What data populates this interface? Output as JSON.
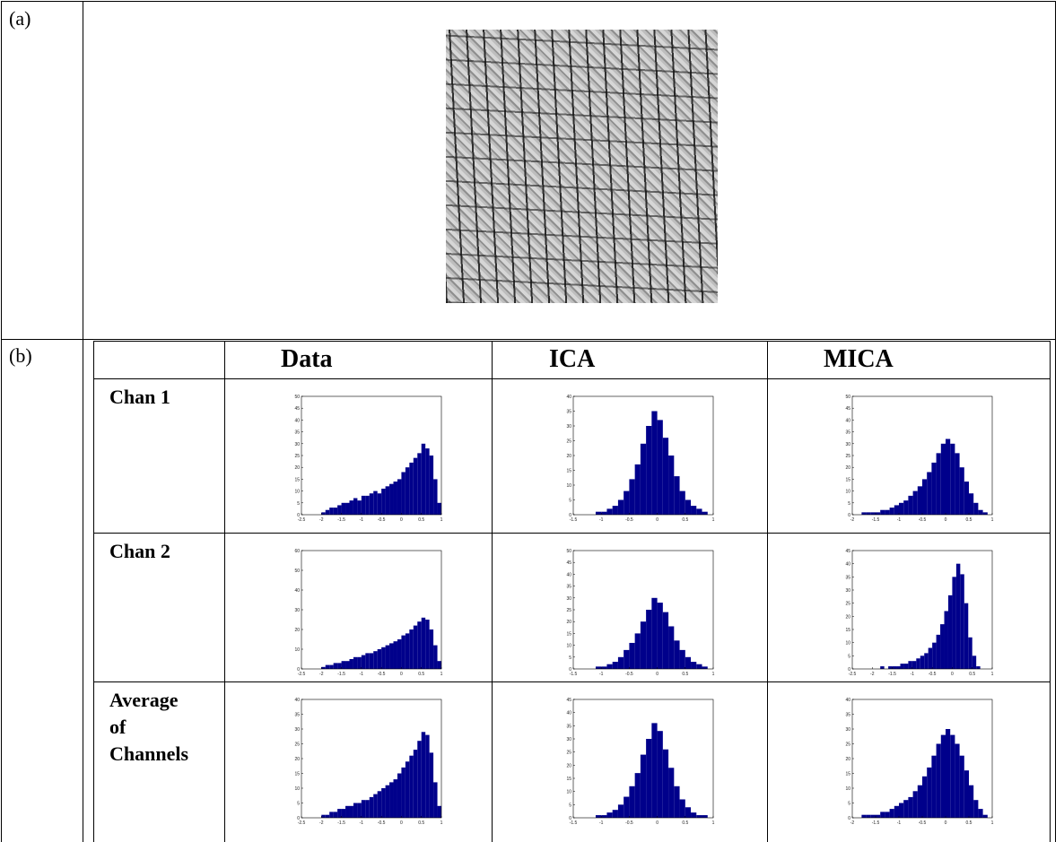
{
  "panel_labels": [
    "(a)",
    "(b)"
  ],
  "table": {
    "columns": [
      "Data",
      "ICA",
      "MICA"
    ],
    "rows": [
      "Chan 1",
      "Chan 2",
      "Average of Channels"
    ]
  },
  "chart_data": [
    {
      "type": "histogram",
      "color": "#00008b",
      "xlim": [
        -2.5,
        1
      ],
      "xticks": [
        -2.5,
        -2,
        -1.5,
        -1,
        -0.5,
        0,
        0.5,
        1
      ],
      "ylim": [
        0,
        50
      ],
      "yticks": [
        0,
        5,
        10,
        15,
        20,
        25,
        30,
        35,
        40,
        45,
        50
      ],
      "bins": [
        -2,
        -1.9,
        -1.8,
        -1.7,
        -1.6,
        -1.5,
        -1.4,
        -1.3,
        -1.2,
        -1.1,
        -1,
        -0.9,
        -0.8,
        -0.7,
        -0.6,
        -0.5,
        -0.4,
        -0.3,
        -0.2,
        -0.1,
        0,
        0.1,
        0.2,
        0.3,
        0.4,
        0.5,
        0.6,
        0.7,
        0.8,
        0.9,
        1
      ],
      "values": [
        1,
        2,
        3,
        3,
        4,
        5,
        5,
        6,
        7,
        6,
        8,
        8,
        9,
        10,
        9,
        11,
        12,
        13,
        14,
        15,
        18,
        20,
        22,
        24,
        26,
        30,
        28,
        25,
        15,
        5
      ]
    },
    {
      "type": "histogram",
      "color": "#00008b",
      "xlim": [
        -1.5,
        1
      ],
      "xticks": [
        -1.5,
        -1,
        -0.5,
        0,
        0.5,
        1
      ],
      "ylim": [
        0,
        40
      ],
      "yticks": [
        0,
        5,
        10,
        15,
        20,
        25,
        30,
        35,
        40
      ],
      "bins": [
        -1.1,
        -1,
        -0.9,
        -0.8,
        -0.7,
        -0.6,
        -0.5,
        -0.4,
        -0.3,
        -0.2,
        -0.1,
        0,
        0.1,
        0.2,
        0.3,
        0.4,
        0.5,
        0.6,
        0.7,
        0.8,
        0.9
      ],
      "values": [
        1,
        1,
        2,
        3,
        5,
        8,
        12,
        17,
        24,
        30,
        35,
        32,
        26,
        20,
        13,
        8,
        5,
        3,
        2,
        1
      ]
    },
    {
      "type": "histogram",
      "color": "#00008b",
      "xlim": [
        -2,
        1
      ],
      "xticks": [
        -2,
        -1.5,
        -1,
        -0.5,
        0,
        0.5,
        1
      ],
      "ylim": [
        0,
        50
      ],
      "yticks": [
        0,
        5,
        10,
        15,
        20,
        25,
        30,
        35,
        40,
        45,
        50
      ],
      "bins": [
        -1.8,
        -1.7,
        -1.6,
        -1.5,
        -1.4,
        -1.3,
        -1.2,
        -1.1,
        -1,
        -0.9,
        -0.8,
        -0.7,
        -0.6,
        -0.5,
        -0.4,
        -0.3,
        -0.2,
        -0.1,
        0,
        0.1,
        0.2,
        0.3,
        0.4,
        0.5,
        0.6,
        0.7,
        0.8,
        0.9
      ],
      "values": [
        1,
        1,
        1,
        1,
        2,
        2,
        3,
        4,
        5,
        6,
        8,
        10,
        12,
        15,
        18,
        22,
        26,
        30,
        32,
        30,
        26,
        20,
        14,
        9,
        5,
        2,
        1
      ]
    },
    {
      "type": "histogram",
      "color": "#00008b",
      "xlim": [
        -2.5,
        1
      ],
      "xticks": [
        -2.5,
        -2,
        -1.5,
        -1,
        -0.5,
        0,
        0.5,
        1
      ],
      "ylim": [
        0,
        60
      ],
      "yticks": [
        0,
        10,
        20,
        30,
        40,
        50,
        60
      ],
      "bins": [
        -2,
        -1.9,
        -1.8,
        -1.7,
        -1.6,
        -1.5,
        -1.4,
        -1.3,
        -1.2,
        -1.1,
        -1,
        -0.9,
        -0.8,
        -0.7,
        -0.6,
        -0.5,
        -0.4,
        -0.3,
        -0.2,
        -0.1,
        0,
        0.1,
        0.2,
        0.3,
        0.4,
        0.5,
        0.6,
        0.7,
        0.8,
        0.9,
        1
      ],
      "values": [
        1,
        2,
        2,
        3,
        3,
        4,
        4,
        5,
        6,
        6,
        7,
        8,
        8,
        9,
        10,
        11,
        12,
        13,
        14,
        15,
        17,
        18,
        20,
        22,
        24,
        26,
        25,
        20,
        12,
        4
      ]
    },
    {
      "type": "histogram",
      "color": "#00008b",
      "xlim": [
        -1.5,
        1
      ],
      "xticks": [
        -1.5,
        -1,
        -0.5,
        0,
        0.5,
        1
      ],
      "ylim": [
        0,
        50
      ],
      "yticks": [
        0,
        5,
        10,
        15,
        20,
        25,
        30,
        35,
        40,
        45,
        50
      ],
      "bins": [
        -1.1,
        -1,
        -0.9,
        -0.8,
        -0.7,
        -0.6,
        -0.5,
        -0.4,
        -0.3,
        -0.2,
        -0.1,
        0,
        0.1,
        0.2,
        0.3,
        0.4,
        0.5,
        0.6,
        0.7,
        0.8,
        0.9
      ],
      "values": [
        1,
        1,
        2,
        3,
        5,
        8,
        11,
        15,
        20,
        25,
        30,
        28,
        24,
        18,
        12,
        8,
        5,
        3,
        2,
        1
      ]
    },
    {
      "type": "histogram",
      "color": "#00008b",
      "xlim": [
        -2.5,
        1
      ],
      "xticks": [
        -2.5,
        -2,
        -1.5,
        -1,
        -0.5,
        0,
        0.5,
        1
      ],
      "ylim": [
        0,
        45
      ],
      "yticks": [
        0,
        5,
        10,
        15,
        20,
        25,
        30,
        35,
        40,
        45
      ],
      "bins": [
        -1.8,
        -1.7,
        -1.6,
        -1.5,
        -1.4,
        -1.3,
        -1.2,
        -1.1,
        -1,
        -0.9,
        -0.8,
        -0.7,
        -0.6,
        -0.5,
        -0.4,
        -0.3,
        -0.2,
        -0.1,
        0,
        0.1,
        0.2,
        0.3,
        0.4,
        0.5,
        0.6,
        0.7
      ],
      "values": [
        1,
        0,
        1,
        1,
        1,
        2,
        2,
        3,
        3,
        4,
        5,
        6,
        8,
        10,
        13,
        17,
        22,
        28,
        35,
        40,
        36,
        25,
        12,
        5,
        1
      ]
    },
    {
      "type": "histogram",
      "color": "#00008b",
      "xlim": [
        -2.5,
        1
      ],
      "xticks": [
        -2.5,
        -2,
        -1.5,
        -1,
        -0.5,
        0,
        0.5,
        1
      ],
      "ylim": [
        0,
        40
      ],
      "yticks": [
        0,
        5,
        10,
        15,
        20,
        25,
        30,
        35,
        40
      ],
      "bins": [
        -2,
        -1.9,
        -1.8,
        -1.7,
        -1.6,
        -1.5,
        -1.4,
        -1.3,
        -1.2,
        -1.1,
        -1,
        -0.9,
        -0.8,
        -0.7,
        -0.6,
        -0.5,
        -0.4,
        -0.3,
        -0.2,
        -0.1,
        0,
        0.1,
        0.2,
        0.3,
        0.4,
        0.5,
        0.6,
        0.7,
        0.8,
        0.9,
        1
      ],
      "values": [
        1,
        1,
        2,
        2,
        3,
        3,
        4,
        4,
        5,
        5,
        6,
        6,
        7,
        8,
        9,
        10,
        11,
        12,
        13,
        15,
        17,
        19,
        21,
        23,
        26,
        29,
        28,
        22,
        12,
        4
      ]
    },
    {
      "type": "histogram",
      "color": "#00008b",
      "xlim": [
        -1.5,
        1
      ],
      "xticks": [
        -1.5,
        -1,
        -0.5,
        0,
        0.5,
        1
      ],
      "ylim": [
        0,
        45
      ],
      "yticks": [
        0,
        5,
        10,
        15,
        20,
        25,
        30,
        35,
        40,
        45
      ],
      "bins": [
        -1.1,
        -1,
        -0.9,
        -0.8,
        -0.7,
        -0.6,
        -0.5,
        -0.4,
        -0.3,
        -0.2,
        -0.1,
        0,
        0.1,
        0.2,
        0.3,
        0.4,
        0.5,
        0.6,
        0.7,
        0.8,
        0.9
      ],
      "values": [
        1,
        1,
        2,
        3,
        5,
        8,
        12,
        17,
        24,
        30,
        36,
        33,
        26,
        19,
        12,
        7,
        4,
        2,
        1,
        1
      ]
    },
    {
      "type": "histogram",
      "color": "#00008b",
      "xlim": [
        -2,
        1
      ],
      "xticks": [
        -2,
        -1.5,
        -1,
        -0.5,
        0,
        0.5,
        1
      ],
      "ylim": [
        0,
        40
      ],
      "yticks": [
        0,
        5,
        10,
        15,
        20,
        25,
        30,
        35,
        40
      ],
      "bins": [
        -1.8,
        -1.7,
        -1.6,
        -1.5,
        -1.4,
        -1.3,
        -1.2,
        -1.1,
        -1,
        -0.9,
        -0.8,
        -0.7,
        -0.6,
        -0.5,
        -0.4,
        -0.3,
        -0.2,
        -0.1,
        0,
        0.1,
        0.2,
        0.3,
        0.4,
        0.5,
        0.6,
        0.7,
        0.8,
        0.9
      ],
      "values": [
        1,
        1,
        1,
        1,
        2,
        2,
        3,
        4,
        5,
        6,
        7,
        9,
        11,
        14,
        17,
        21,
        25,
        28,
        30,
        28,
        25,
        21,
        16,
        11,
        6,
        3,
        1
      ]
    }
  ]
}
